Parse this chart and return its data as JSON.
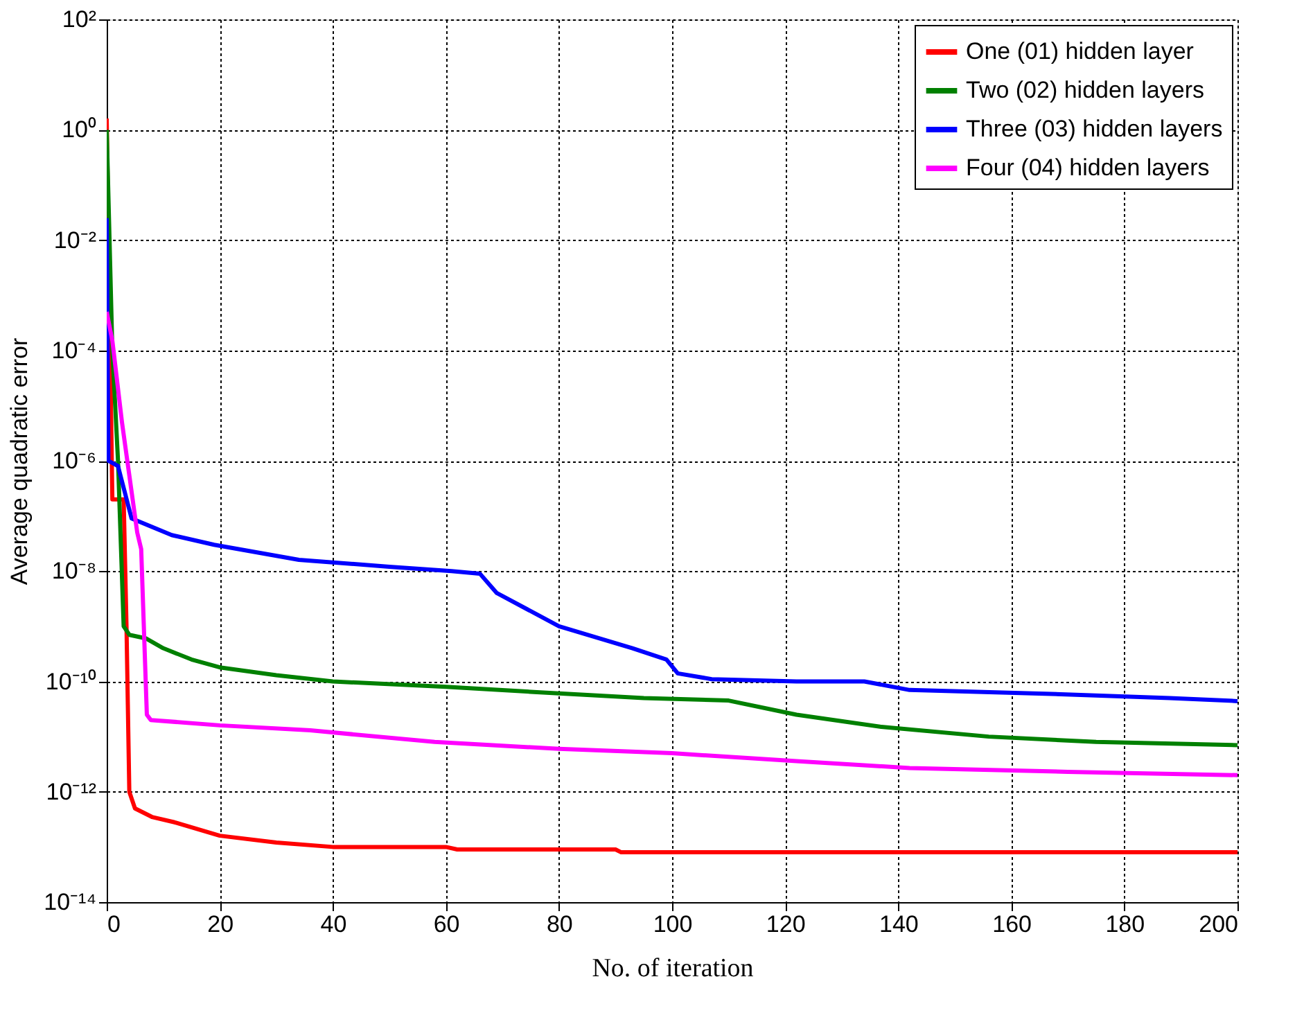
{
  "chart_data": {
    "type": "line",
    "xlabel": "No. of iteration",
    "ylabel": "Average quadratic error",
    "log": "y",
    "grid": true,
    "legend": "top right",
    "line_style": "solid",
    "marker": "none",
    "xlim": [
      0,
      200
    ],
    "xticks": [
      0,
      20,
      40,
      60,
      80,
      100,
      120,
      140,
      160,
      180,
      200
    ],
    "ylim": [
      1e-14,
      100
    ],
    "yticks": [
      {
        "value": 1e-14,
        "label": "10⁻¹⁴"
      },
      {
        "value": 1e-12,
        "label": "10⁻¹²"
      },
      {
        "value": 1e-10,
        "label": "10⁻¹⁰"
      },
      {
        "value": 1e-08,
        "label": "10⁻⁸"
      },
      {
        "value": 1e-06,
        "label": "10⁻⁶"
      },
      {
        "value": 0.0001,
        "label": "10⁻⁴"
      },
      {
        "value": 0.01,
        "label": "10⁻²"
      },
      {
        "value": 1,
        "label": "10⁰"
      },
      {
        "value": 100,
        "label": "10²"
      }
    ],
    "series": [
      {
        "name": "One (01) hidden layer",
        "color": "#ff0000",
        "x": [
          0,
          1,
          3,
          3.5,
          4,
          5,
          8,
          12,
          20,
          30,
          40,
          60,
          62,
          90,
          91,
          200
        ],
        "values": [
          1.6,
          2e-07,
          2e-07,
          1e-09,
          1e-12,
          5e-13,
          3.5e-13,
          2.8e-13,
          1.6e-13,
          1.2e-13,
          1e-13,
          1e-13,
          9e-14,
          9e-14,
          8e-14,
          8e-14
        ]
      },
      {
        "name": "Two (02) hidden layers",
        "color": "#008000",
        "x": [
          0,
          1,
          2,
          3,
          4,
          7,
          10,
          15,
          20,
          30,
          40,
          60,
          75,
          95,
          110,
          122,
          137,
          156,
          175,
          200
        ],
        "values": [
          1,
          0.0001,
          1e-06,
          1e-09,
          7e-10,
          6e-10,
          4e-10,
          2.5e-10,
          1.8e-10,
          1.3e-10,
          1e-10,
          8e-11,
          6.5e-11,
          5e-11,
          4.5e-11,
          2.5e-11,
          1.5e-11,
          1e-11,
          8e-12,
          7e-12
        ]
      },
      {
        "name": "Three (03) hidden layers",
        "color": "#0000ff",
        "x": [
          0,
          0.3,
          2,
          4.4,
          11.5,
          19,
          34,
          50,
          61,
          66,
          69,
          80,
          93,
          99,
          101,
          107,
          122,
          134,
          142,
          166,
          188,
          200
        ],
        "values": [
          0.025,
          1e-06,
          8e-07,
          9e-08,
          4.5e-08,
          3e-08,
          1.6e-08,
          1.2e-08,
          1e-08,
          9e-09,
          4e-09,
          1e-09,
          4e-10,
          2.5e-10,
          1.4e-10,
          1.1e-10,
          1e-10,
          1e-10,
          7e-11,
          6e-11,
          5e-11,
          4.4e-11
        ]
      },
      {
        "name": "Four (04) hidden layers",
        "color": "#ff00ff",
        "x": [
          0,
          1,
          2.7,
          5.4,
          6.1,
          7.1,
          7.8,
          20,
          36,
          58,
          80,
          100,
          122,
          142,
          170,
          200
        ],
        "values": [
          0.0005,
          0.00015,
          5e-06,
          5e-08,
          2.5e-08,
          2.5e-11,
          2e-11,
          1.6e-11,
          1.3e-11,
          8e-12,
          6e-12,
          5e-12,
          3.6e-12,
          2.7e-12,
          2.3e-12,
          2e-12
        ]
      }
    ]
  }
}
